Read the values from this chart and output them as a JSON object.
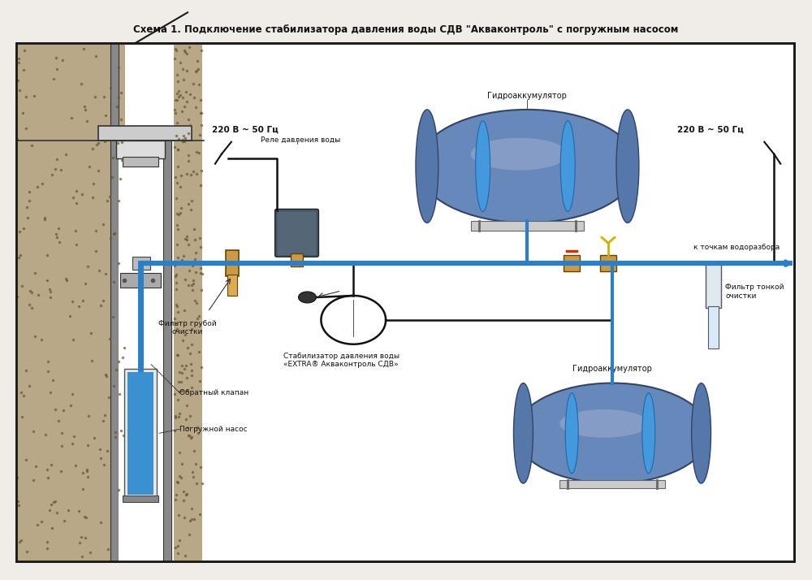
{
  "title": "Схема 1. Подключение стабилизатора давления воды СДВ \"Акваконтроль\" с погружным насосом",
  "bg_color": "#f5f5f0",
  "box_color": "#ffffff",
  "box_border": "#1a1a1a",
  "ground_color": "#c8b89a",
  "ground_pattern": "#8B7355",
  "water_pipe_color": "#2b7fc7",
  "cable_color": "#1a1a1a",
  "pump_color": "#4488cc",
  "tank_body_color": "#6680aa",
  "tank_highlight": "#8899bb",
  "tank_shadow": "#445577",
  "labels": {
    "title": "Схема 1. Подключение стабилизатора давления воды СДВ \"Акваконтроль\" с погружным насосом",
    "power1": "220 В ~ 50 Гц",
    "power2": "220 В ~ 50 Гц",
    "relay": "Реле давления воды",
    "hydro1": "Гидроаккумулятор",
    "hydro2": "Гидроаккумулятор",
    "filter_coarse": "Фильтр грубой\nочистки",
    "filter_fine": "Фильтр тонкой\nочистки",
    "check_valve": "Обратный клапан",
    "pump": "Погружной насос",
    "stabilizer": "Стабилизатор давления воды\n«EXTRA® Акваконтроль СДВ»",
    "water_points": "к точкам водоразбора"
  }
}
